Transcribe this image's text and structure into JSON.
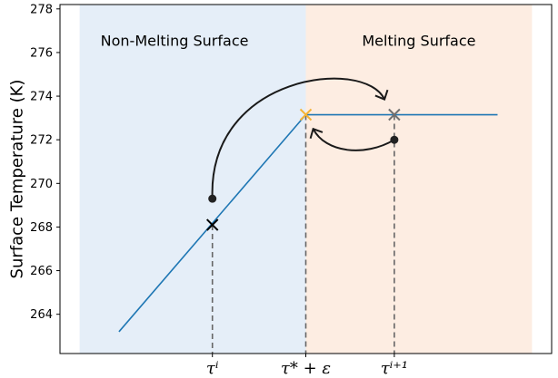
{
  "chart_data": {
    "type": "line",
    "title": "",
    "ylabel": "Surface Temperature (K)",
    "xlabel": "",
    "ylim": [
      262.2,
      278.2
    ],
    "xlim": [
      0,
      1
    ],
    "grid": false,
    "y_ticks": [
      264,
      266,
      268,
      270,
      272,
      274,
      276,
      278
    ],
    "x_ticks": [
      {
        "x": 0.31,
        "label": "τⁱ"
      },
      {
        "x": 0.5,
        "label": "τ* + ε"
      },
      {
        "x": 0.68,
        "label": "τⁱ⁺¹"
      }
    ],
    "regions": [
      {
        "label": "Non-Melting Surface",
        "x": [
          0.04,
          0.5
        ],
        "color": "#e5eef8"
      },
      {
        "label": "Melting Surface",
        "x": [
          0.5,
          0.96
        ],
        "color": "#fdede2"
      }
    ],
    "series": [
      {
        "color": "#1f77b4",
        "x": [
          0.12,
          0.5,
          0.89
        ],
        "y": [
          263.2,
          273.15,
          273.15
        ]
      }
    ],
    "markers": [
      {
        "kind": "x",
        "x": 0.31,
        "y": 268.1,
        "color": "#000000"
      },
      {
        "kind": "x",
        "x": 0.5,
        "y": 273.15,
        "color": "#f5b335"
      },
      {
        "kind": "x",
        "x": 0.68,
        "y": 273.15,
        "color": "#707070"
      },
      {
        "kind": "dot",
        "x": 0.31,
        "y": 269.3,
        "color": "#222222"
      },
      {
        "kind": "dot",
        "x": 0.68,
        "y": 272.0,
        "color": "#222222"
      }
    ],
    "dashed_lines": [
      {
        "x": 0.31,
        "y_top": 268.1,
        "color": "#666666"
      },
      {
        "x": 0.5,
        "y_top": 273.15,
        "color": "#666666"
      },
      {
        "x": 0.68,
        "y_top": 273.15,
        "color": "#666666"
      }
    ],
    "arrows": [
      {
        "from": {
          "x": 0.31,
          "y": 269.3
        },
        "ctrl1": {
          "x": 0.3,
          "y": 275.0
        },
        "ctrl2": {
          "x": 0.62,
          "y": 275.8
        },
        "to": {
          "x": 0.66,
          "y": 273.85
        }
      },
      {
        "from": {
          "x": 0.68,
          "y": 272.0
        },
        "ctrl1": {
          "x": 0.62,
          "y": 271.2
        },
        "ctrl2": {
          "x": 0.54,
          "y": 271.4
        },
        "to": {
          "x": 0.515,
          "y": 272.5
        }
      }
    ]
  }
}
